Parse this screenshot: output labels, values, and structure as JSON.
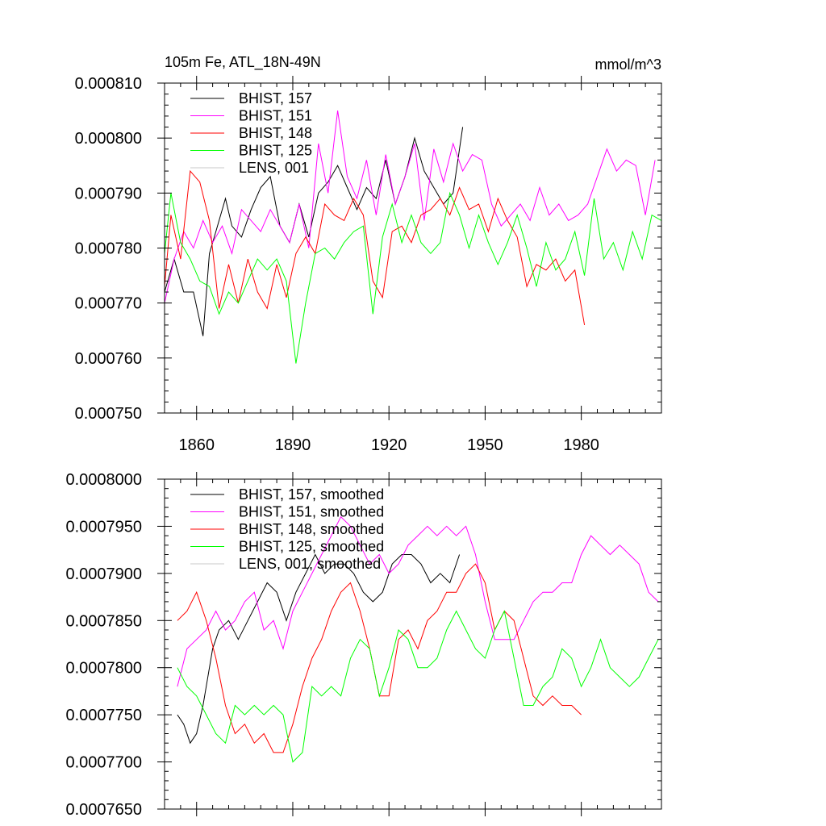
{
  "chart_data": [
    {
      "type": "line",
      "title_left": "105m Fe, ATL_18N-49N",
      "title_right": "mmol/m^3",
      "xlabel": "",
      "ylabel": "",
      "xlim": [
        1850,
        2005
      ],
      "ylim": [
        0.00075,
        0.00081
      ],
      "y_tick_values": [
        0.00075,
        0.00076,
        0.00077,
        0.00078,
        0.00079,
        0.0008,
        0.00081
      ],
      "y_tick_labels": [
        "0.000750",
        "0.000760",
        "0.000770",
        "0.000780",
        "0.000790",
        "0.000800",
        "0.000810"
      ],
      "x_tick_values": [
        1860,
        1890,
        1920,
        1950,
        1980
      ],
      "x_tick_labels": [
        "1860",
        "1890",
        "1920",
        "1950",
        "1980"
      ],
      "grid": false,
      "legend_position": "top-left",
      "series": [
        {
          "name": "BHIST, 157",
          "color": "#000000",
          "x": [
            1850,
            1853,
            1856,
            1859,
            1862,
            1864,
            1866,
            1869,
            1871,
            1874,
            1877,
            1880,
            1883,
            1886,
            1889,
            1892,
            1895,
            1898,
            1901,
            1904,
            1907,
            1910,
            1913,
            1916,
            1919,
            1922,
            1925,
            1928,
            1931,
            1934,
            1937,
            1940,
            1943
          ],
          "values": [
            0.000772,
            0.000778,
            0.000772,
            0.000772,
            0.000764,
            0.000779,
            0.000783,
            0.000789,
            0.000784,
            0.000782,
            0.000787,
            0.000791,
            0.000793,
            0.000784,
            0.000781,
            0.000788,
            0.000782,
            0.00079,
            0.000792,
            0.000795,
            0.000791,
            0.000787,
            0.000791,
            0.000789,
            0.000796,
            0.000788,
            0.000793,
            0.0008,
            0.000794,
            0.000791,
            0.000788,
            0.00079,
            0.000802
          ]
        },
        {
          "name": "BHIST, 151",
          "color": "#ff00ff",
          "x": [
            1850,
            1853,
            1856,
            1859,
            1862,
            1865,
            1868,
            1871,
            1874,
            1877,
            1880,
            1883,
            1886,
            1889,
            1892,
            1895,
            1898,
            1901,
            1904,
            1907,
            1910,
            1913,
            1916,
            1919,
            1922,
            1925,
            1928,
            1931,
            1934,
            1937,
            1940,
            1943,
            1946,
            1949,
            1952,
            1955,
            1958,
            1961,
            1964,
            1967,
            1970,
            1973,
            1976,
            1979,
            1982,
            1985,
            1988,
            1991,
            1994,
            1997,
            2000,
            2003
          ],
          "values": [
            0.00077,
            0.000778,
            0.000783,
            0.00078,
            0.000785,
            0.000781,
            0.000784,
            0.000779,
            0.000787,
            0.000785,
            0.000783,
            0.000787,
            0.000784,
            0.000781,
            0.000788,
            0.00078,
            0.000799,
            0.00079,
            0.000805,
            0.000793,
            0.000789,
            0.000796,
            0.000786,
            0.000797,
            0.000788,
            0.000793,
            0.000799,
            0.000785,
            0.000798,
            0.000792,
            0.000799,
            0.000794,
            0.000797,
            0.000796,
            0.000788,
            0.000784,
            0.000786,
            0.000788,
            0.000785,
            0.000791,
            0.000786,
            0.000788,
            0.000785,
            0.000786,
            0.000788,
            0.000793,
            0.000798,
            0.000794,
            0.000796,
            0.000795,
            0.000786,
            0.000796
          ]
        },
        {
          "name": "BHIST, 148",
          "color": "#ff0000",
          "x": [
            1850,
            1852,
            1855,
            1858,
            1861,
            1864,
            1867,
            1870,
            1873,
            1876,
            1879,
            1882,
            1885,
            1888,
            1891,
            1894,
            1897,
            1900,
            1903,
            1906,
            1909,
            1912,
            1915,
            1918,
            1921,
            1924,
            1927,
            1930,
            1933,
            1936,
            1939,
            1942,
            1945,
            1948,
            1951,
            1954,
            1957,
            1960,
            1963,
            1966,
            1969,
            1972,
            1975,
            1978,
            1981
          ],
          "values": [
            0.000773,
            0.000786,
            0.000778,
            0.000794,
            0.000792,
            0.000785,
            0.000769,
            0.000777,
            0.00077,
            0.000778,
            0.000772,
            0.000769,
            0.000777,
            0.000771,
            0.000779,
            0.000782,
            0.000779,
            0.000788,
            0.000786,
            0.000785,
            0.000789,
            0.000786,
            0.000774,
            0.000771,
            0.000783,
            0.000784,
            0.000781,
            0.000786,
            0.000787,
            0.000789,
            0.000786,
            0.000791,
            0.000787,
            0.000788,
            0.000783,
            0.000789,
            0.000785,
            0.000782,
            0.000773,
            0.000777,
            0.000776,
            0.000778,
            0.000774,
            0.000776,
            0.000766
          ]
        },
        {
          "name": "BHIST, 125",
          "color": "#00ff00",
          "x": [
            1850,
            1852,
            1855,
            1858,
            1861,
            1864,
            1867,
            1870,
            1873,
            1876,
            1879,
            1882,
            1885,
            1888,
            1891,
            1894,
            1897,
            1900,
            1903,
            1906,
            1909,
            1912,
            1915,
            1918,
            1921,
            1924,
            1927,
            1930,
            1933,
            1936,
            1939,
            1942,
            1945,
            1948,
            1951,
            1954,
            1957,
            1960,
            1963,
            1966,
            1969,
            1972,
            1975,
            1978,
            1981,
            1984,
            1987,
            1990,
            1993,
            1996,
            1999,
            2002,
            2005
          ],
          "values": [
            0.000779,
            0.00079,
            0.000781,
            0.000778,
            0.000774,
            0.000773,
            0.000768,
            0.000772,
            0.00077,
            0.000774,
            0.000778,
            0.000776,
            0.000778,
            0.000774,
            0.000759,
            0.00077,
            0.000779,
            0.00078,
            0.000778,
            0.000781,
            0.000783,
            0.000784,
            0.000768,
            0.000782,
            0.000788,
            0.000781,
            0.000786,
            0.000781,
            0.000779,
            0.000781,
            0.00079,
            0.000786,
            0.00078,
            0.000786,
            0.000781,
            0.000777,
            0.000781,
            0.000786,
            0.00078,
            0.000773,
            0.000781,
            0.000776,
            0.000778,
            0.000783,
            0.000775,
            0.000789,
            0.000778,
            0.000781,
            0.000776,
            0.000783,
            0.000778,
            0.000786,
            0.000785
          ]
        },
        {
          "name": "LENS, 001",
          "color": "#c8c8c8",
          "x": [],
          "values": []
        }
      ]
    },
    {
      "type": "line",
      "title_left": "",
      "title_right": "",
      "xlabel": "",
      "ylabel": "",
      "xlim": [
        1850,
        2005
      ],
      "ylim": [
        0.000765,
        0.0008
      ],
      "y_tick_values": [
        0.000765,
        0.00077,
        0.000775,
        0.00078,
        0.000785,
        0.00079,
        0.000795,
        0.0008
      ],
      "y_tick_labels": [
        "0.0007650",
        "0.0007700",
        "0.0007750",
        "0.0007800",
        "0.0007850",
        "0.0007900",
        "0.0007950",
        "0.0008000"
      ],
      "x_tick_values": [
        1860,
        1890,
        1920,
        1950,
        1980
      ],
      "x_tick_labels": [],
      "grid": false,
      "legend_position": "top-left",
      "series": [
        {
          "name": "BHIST, 157, smoothed",
          "color": "#000000",
          "x": [
            1854,
            1856,
            1858,
            1860,
            1862,
            1865,
            1867,
            1870,
            1873,
            1876,
            1879,
            1882,
            1885,
            1888,
            1891,
            1894,
            1897,
            1900,
            1903,
            1906,
            1909,
            1912,
            1915,
            1918,
            1921,
            1924,
            1927,
            1930,
            1933,
            1936,
            1939,
            1942
          ],
          "values": [
            0.000775,
            0.000774,
            0.000772,
            0.000773,
            0.000776,
            0.000782,
            0.000784,
            0.000785,
            0.000783,
            0.000785,
            0.000787,
            0.000789,
            0.000788,
            0.000785,
            0.000788,
            0.00079,
            0.000792,
            0.00079,
            0.000791,
            0.000791,
            0.00079,
            0.000788,
            0.000787,
            0.000788,
            0.000791,
            0.000792,
            0.000792,
            0.000791,
            0.000789,
            0.00079,
            0.000789,
            0.000792
          ]
        },
        {
          "name": "BHIST, 151, smoothed",
          "color": "#ff00ff",
          "x": [
            1854,
            1857,
            1860,
            1863,
            1866,
            1869,
            1872,
            1875,
            1878,
            1881,
            1884,
            1887,
            1890,
            1893,
            1896,
            1899,
            1902,
            1905,
            1908,
            1911,
            1914,
            1917,
            1920,
            1923,
            1926,
            1929,
            1932,
            1935,
            1938,
            1941,
            1944,
            1947,
            1950,
            1953,
            1956,
            1959,
            1962,
            1965,
            1968,
            1971,
            1974,
            1977,
            1980,
            1983,
            1986,
            1989,
            1992,
            1995,
            1998,
            2001,
            2004
          ],
          "values": [
            0.000778,
            0.000782,
            0.000783,
            0.000784,
            0.000786,
            0.000784,
            0.000785,
            0.000787,
            0.000788,
            0.000784,
            0.000785,
            0.000782,
            0.000786,
            0.000788,
            0.00079,
            0.000792,
            0.000794,
            0.000796,
            0.000795,
            0.000793,
            0.000791,
            0.000792,
            0.00079,
            0.000791,
            0.000793,
            0.000794,
            0.000795,
            0.000794,
            0.000795,
            0.000794,
            0.000795,
            0.000792,
            0.000787,
            0.000783,
            0.000783,
            0.000783,
            0.000785,
            0.000787,
            0.000788,
            0.000788,
            0.000789,
            0.000789,
            0.000792,
            0.000794,
            0.000793,
            0.000792,
            0.000793,
            0.000792,
            0.000791,
            0.000788,
            0.000787
          ]
        },
        {
          "name": "BHIST, 148, smoothed",
          "color": "#ff0000",
          "x": [
            1854,
            1857,
            1860,
            1863,
            1866,
            1869,
            1872,
            1875,
            1878,
            1881,
            1884,
            1887,
            1890,
            1893,
            1896,
            1899,
            1902,
            1905,
            1908,
            1911,
            1914,
            1917,
            1920,
            1923,
            1926,
            1929,
            1932,
            1935,
            1938,
            1941,
            1944,
            1947,
            1950,
            1953,
            1956,
            1959,
            1962,
            1965,
            1968,
            1971,
            1974,
            1977,
            1980
          ],
          "values": [
            0.000785,
            0.000786,
            0.000788,
            0.000785,
            0.000781,
            0.000776,
            0.000773,
            0.000774,
            0.000772,
            0.000773,
            0.000771,
            0.000771,
            0.000774,
            0.000778,
            0.000781,
            0.000783,
            0.000786,
            0.000788,
            0.000789,
            0.000786,
            0.000782,
            0.000777,
            0.000777,
            0.000783,
            0.000784,
            0.000782,
            0.000785,
            0.000786,
            0.000788,
            0.000788,
            0.00079,
            0.000791,
            0.000789,
            0.000784,
            0.000786,
            0.000785,
            0.000781,
            0.000777,
            0.000776,
            0.000777,
            0.000776,
            0.000776,
            0.000775
          ]
        },
        {
          "name": "BHIST, 125, smoothed",
          "color": "#00ff00",
          "x": [
            1854,
            1857,
            1860,
            1863,
            1866,
            1869,
            1872,
            1875,
            1878,
            1881,
            1884,
            1887,
            1890,
            1893,
            1896,
            1899,
            1902,
            1905,
            1908,
            1911,
            1914,
            1917,
            1920,
            1923,
            1926,
            1929,
            1932,
            1935,
            1938,
            1941,
            1944,
            1947,
            1950,
            1953,
            1956,
            1959,
            1962,
            1965,
            1968,
            1971,
            1974,
            1977,
            1980,
            1983,
            1986,
            1989,
            1992,
            1995,
            1998,
            2001,
            2004
          ],
          "values": [
            0.00078,
            0.000778,
            0.000777,
            0.000775,
            0.000773,
            0.000772,
            0.000776,
            0.000775,
            0.000776,
            0.000775,
            0.000776,
            0.000775,
            0.00077,
            0.000771,
            0.000778,
            0.000777,
            0.000778,
            0.000777,
            0.000781,
            0.000783,
            0.000782,
            0.000777,
            0.00078,
            0.000784,
            0.000783,
            0.00078,
            0.00078,
            0.000781,
            0.000784,
            0.000786,
            0.000784,
            0.000782,
            0.000781,
            0.000784,
            0.000786,
            0.000781,
            0.000776,
            0.000776,
            0.000778,
            0.000779,
            0.000782,
            0.000781,
            0.000778,
            0.00078,
            0.000783,
            0.00078,
            0.000779,
            0.000778,
            0.000779,
            0.000781,
            0.000783
          ]
        },
        {
          "name": "LENS, 001, smoothed",
          "color": "#c8c8c8",
          "x": [],
          "values": []
        }
      ]
    }
  ]
}
